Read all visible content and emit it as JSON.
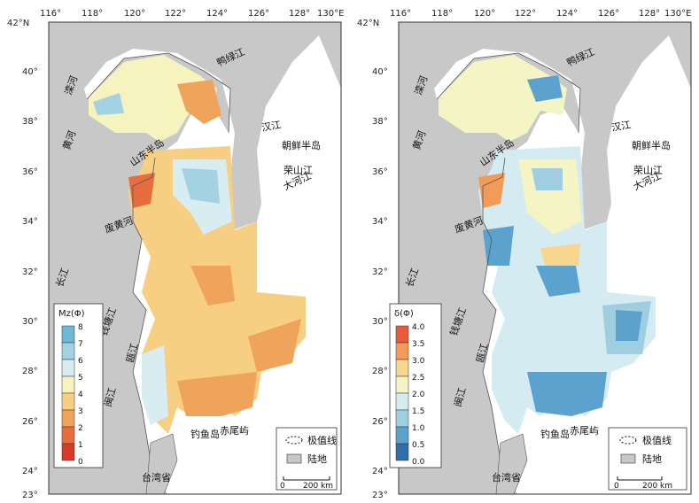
{
  "axes": {
    "lon_labels": [
      "116°",
      "118°",
      "120°",
      "122°",
      "124°",
      "126°",
      "128°",
      "130°E"
    ],
    "lat_labels": [
      "42°N",
      "40°",
      "38°",
      "36°",
      "34°",
      "32°",
      "30°",
      "28°",
      "26°",
      "24°",
      "23°"
    ]
  },
  "place_labels": {
    "luanhe": "滦河",
    "yalujiang": "鸭绿江",
    "huanghe": "黄河",
    "shandong": "山东半岛",
    "hanjiang": "汉江",
    "chaoxian": "朝鲜半岛",
    "rongshanjiang": "荣山江",
    "daheijiang": "大河江",
    "feihuanghe": "废黄河",
    "changjiang": "长江",
    "qiantangjiang": "钱塘江",
    "oujiang": "瓯江",
    "minjiang": "闽江",
    "diaoyudao": "钓鱼岛",
    "chiweiyu": "赤尾屿",
    "taiwan": "台湾省"
  },
  "legend_box": {
    "extreme_line": "极值线",
    "land": "陆地",
    "scale": "200 km",
    "scale_zero": "0"
  },
  "left_panel": {
    "legend_title": "Mz(Φ)",
    "ticks": [
      "8",
      "7",
      "6",
      "5",
      "4",
      "3",
      "2",
      "1",
      "0"
    ],
    "colors": [
      "#6fb7d6",
      "#a3d2e3",
      "#d8edf1",
      "#f6f3be",
      "#f7cf82",
      "#f0a35a",
      "#e86d3e",
      "#d53b28"
    ]
  },
  "right_panel": {
    "legend_title": "δ(Φ)",
    "ticks": [
      "4.0",
      "3.5",
      "3.0",
      "2.5",
      "2.0",
      "1.5",
      "1.0",
      "0.5",
      "0.0"
    ],
    "colors": [
      "#e85a38",
      "#f29a57",
      "#f8d68e",
      "#f5f4c4",
      "#d3ebf1",
      "#9fcee1",
      "#5ca2cf",
      "#2e6ea9"
    ]
  },
  "colors": {
    "land": "#c8c8c8",
    "water": "#ffffff"
  }
}
